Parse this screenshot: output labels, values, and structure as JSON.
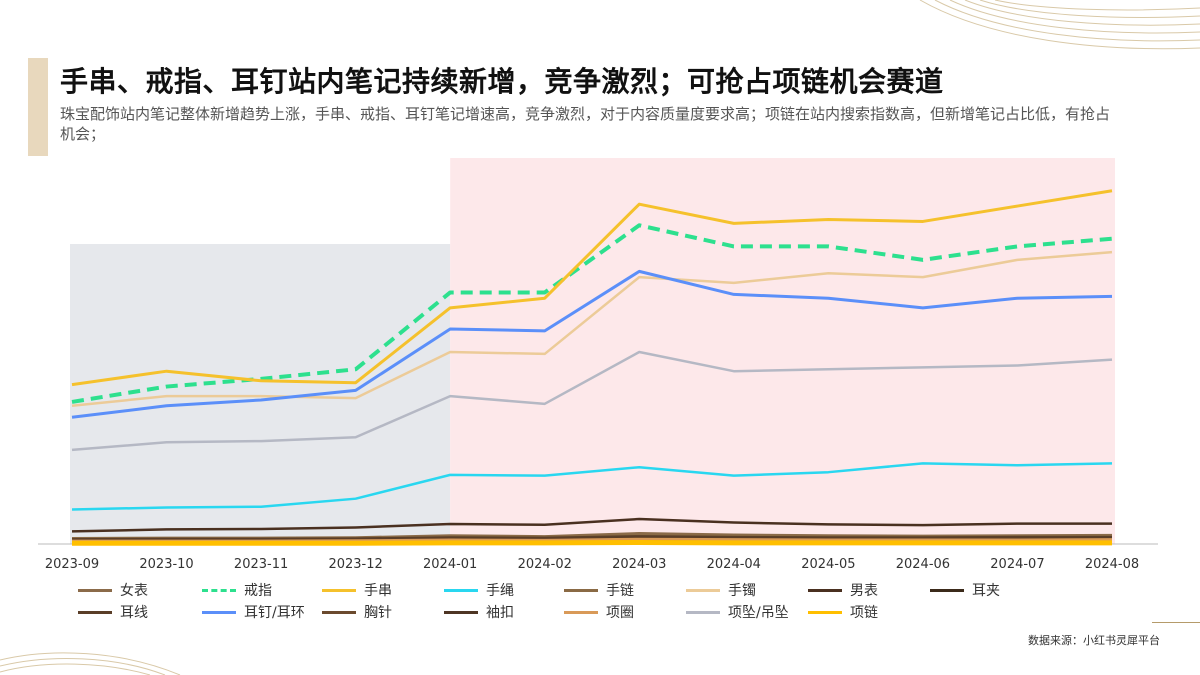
{
  "header": {
    "title": "手串、戒指、耳钉站内笔记持续新增，竞争激烈；可抢占项链机会赛道",
    "subtitle": "珠宝配饰站内笔记整体新增趋势上涨，手串、戒指、耳钉笔记增速高，竞争激烈，对于内容质量度要求高；项链在站内搜索指数高，但新增笔记占比低，有抢占机会；"
  },
  "footer": {
    "source": "数据来源：小红书灵犀平台"
  },
  "chart_data": {
    "type": "line",
    "categories": [
      "2023-09",
      "2023-10",
      "2023-11",
      "2023-12",
      "2024-01",
      "2024-02",
      "2024-03",
      "2024-04",
      "2024-05",
      "2024-06",
      "2024-07",
      "2024-08"
    ],
    "ylim": [
      0,
      100
    ],
    "highlight_regions": [
      {
        "from": "2023-09",
        "to": "2024-01",
        "color": "#e6e8ec"
      },
      {
        "from": "2024-01",
        "to": "2024-08",
        "color": "#fde8ea"
      }
    ],
    "series": [
      {
        "name": "女表",
        "color": "#8b6b4a",
        "dash": false,
        "width": 2.5,
        "values": [
          1.5,
          1.6,
          1.6,
          1.7,
          2.2,
          2.0,
          2.8,
          2.4,
          2.2,
          2.1,
          2.2,
          2.3
        ]
      },
      {
        "name": "戒指",
        "color": "#2de08e",
        "dash": true,
        "width": 4,
        "values": [
          37,
          41,
          43,
          45.5,
          65.5,
          65.5,
          83,
          77.5,
          77.5,
          74,
          77.5,
          79.5
        ]
      },
      {
        "name": "手串",
        "color": "#f5c12c",
        "dash": false,
        "width": 3,
        "values": [
          41.5,
          45,
          42.5,
          42,
          61.5,
          64,
          88.5,
          83.5,
          84.5,
          84,
          88,
          92
        ]
      },
      {
        "name": "手绳",
        "color": "#29d7f0",
        "dash": false,
        "width": 2.5,
        "values": [
          9,
          9.5,
          9.7,
          11.8,
          18,
          17.8,
          20,
          17.8,
          18.7,
          21,
          20.5,
          21
        ]
      },
      {
        "name": "手链",
        "color": "#8a6a45",
        "dash": false,
        "width": 2.5,
        "values": [
          1.4,
          1.5,
          1.5,
          1.6,
          2.0,
          1.9,
          2.4,
          2.1,
          2.0,
          1.9,
          2.0,
          2.1
        ]
      },
      {
        "name": "手镯",
        "color": "#eccb98",
        "dash": false,
        "width": 2.5,
        "values": [
          36,
          38.5,
          38.5,
          38,
          50,
          49.5,
          69.5,
          68,
          70.5,
          69.5,
          74,
          76
        ]
      },
      {
        "name": "男表",
        "color": "#4a3020",
        "dash": false,
        "width": 2.5,
        "values": [
          3.3,
          3.8,
          3.9,
          4.3,
          5.2,
          5.0,
          6.5,
          5.6,
          5.1,
          4.9,
          5.3,
          5.3
        ]
      },
      {
        "name": "耳夹",
        "color": "#3b2a1a",
        "dash": false,
        "width": 2.5,
        "values": [
          0.9,
          1.0,
          1.0,
          1.1,
          1.3,
          1.2,
          1.5,
          1.4,
          1.3,
          1.3,
          1.3,
          1.4
        ]
      },
      {
        "name": "耳线",
        "color": "#5a3e28",
        "dash": false,
        "width": 2.5,
        "values": [
          1.2,
          1.3,
          1.3,
          1.4,
          1.7,
          1.6,
          2.0,
          1.8,
          1.7,
          1.7,
          1.8,
          1.8
        ]
      },
      {
        "name": "耳钉/耳环",
        "color": "#5b8ff9",
        "dash": false,
        "width": 3,
        "values": [
          33,
          36,
          37.5,
          40,
          56,
          55.5,
          71,
          65,
          64,
          61.5,
          64,
          64.5
        ]
      },
      {
        "name": "胸针",
        "color": "#6b4a2e",
        "dash": false,
        "width": 2.5,
        "values": [
          0.6,
          0.6,
          0.6,
          0.7,
          0.9,
          0.8,
          1.0,
          0.9,
          0.9,
          0.8,
          0.9,
          0.9
        ]
      },
      {
        "name": "袖扣",
        "color": "#4e3524",
        "dash": false,
        "width": 2.5,
        "values": [
          0.3,
          0.3,
          0.3,
          0.3,
          0.4,
          0.4,
          0.5,
          0.4,
          0.4,
          0.4,
          0.4,
          0.4
        ]
      },
      {
        "name": "项圈",
        "color": "#d99a58",
        "dash": false,
        "width": 2.5,
        "values": [
          0.8,
          0.8,
          0.8,
          0.9,
          1.1,
          1.0,
          1.3,
          1.2,
          1.1,
          1.1,
          1.1,
          1.2
        ]
      },
      {
        "name": "项坠/吊坠",
        "color": "#b5b8c4",
        "dash": false,
        "width": 2.5,
        "values": [
          24.5,
          26.5,
          26.8,
          27.8,
          38.5,
          36.5,
          50,
          45,
          45.5,
          46,
          46.5,
          48
        ]
      },
      {
        "name": "项链",
        "color": "#ffbf00",
        "dash": false,
        "width": 5,
        "values": [
          0.2,
          0.2,
          0.2,
          0.2,
          0.3,
          0.3,
          0.4,
          0.3,
          0.3,
          0.3,
          0.3,
          0.3
        ]
      }
    ]
  }
}
